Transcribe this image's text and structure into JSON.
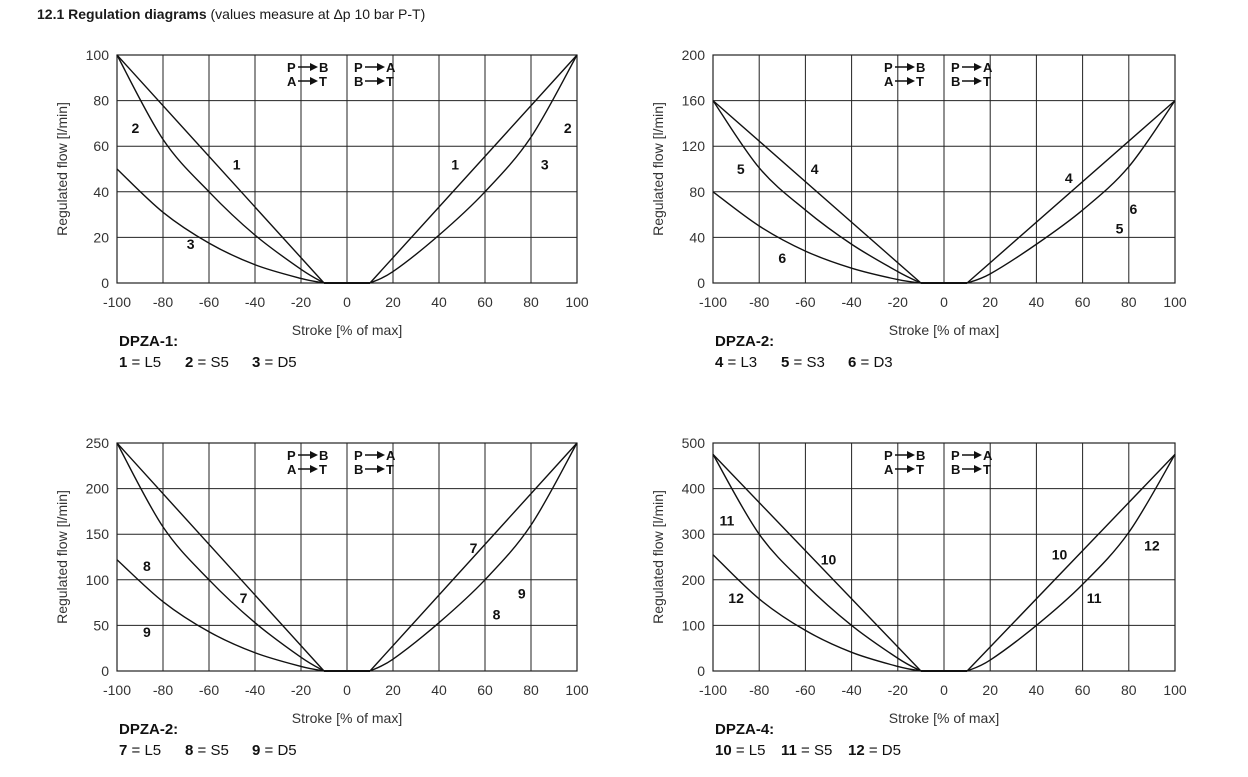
{
  "heading": {
    "number_title": "12.1 Regulation diagrams",
    "note": "(values measure at Δp 10 bar P-T)"
  },
  "flow_directions": {
    "left_top": "P",
    "left_top_to": "B",
    "left_bottom": "A",
    "left_bottom_to": "T",
    "right_top": "P",
    "right_top_to": "A",
    "right_bottom": "B",
    "right_bottom_to": "T"
  },
  "chart_data": [
    {
      "type": "line",
      "xlabel": "Stroke [% of max]",
      "ylabel": "Regulated flow [l/min]",
      "xlim": [
        -100,
        100
      ],
      "ylim": [
        0,
        100
      ],
      "xticks": [
        -100,
        -80,
        -60,
        -40,
        -20,
        0,
        20,
        40,
        60,
        80,
        100
      ],
      "yticks": [
        0,
        20,
        40,
        60,
        80,
        100
      ],
      "grid": true,
      "legend_title": "DPZA-1:",
      "legend": [
        {
          "num": "1",
          "code": "L5"
        },
        {
          "num": "2",
          "code": "S5"
        },
        {
          "num": "3",
          "code": "D5"
        }
      ],
      "series": [
        {
          "x": [
            -100,
            -10
          ],
          "y": [
            100,
            0
          ]
        },
        {
          "x": [
            -100,
            -80,
            -60,
            -40,
            -20,
            -10
          ],
          "y": [
            100,
            63,
            40,
            21,
            6,
            0
          ]
        },
        {
          "x": [
            -100,
            -80,
            -60,
            -40,
            -20,
            -10
          ],
          "y": [
            50,
            31,
            17.5,
            8,
            2,
            0
          ]
        },
        {
          "x": [
            10,
            100
          ],
          "y": [
            0,
            100
          ]
        },
        {
          "x": [
            10,
            20,
            40,
            60,
            80,
            100
          ],
          "y": [
            0,
            5,
            21,
            40,
            64,
            100
          ]
        }
      ],
      "annotations": [
        {
          "text": "2",
          "x": -92,
          "y": 68
        },
        {
          "text": "1",
          "x": -48,
          "y": 52
        },
        {
          "text": "3",
          "x": -68,
          "y": 17
        },
        {
          "text": "1",
          "x": 47,
          "y": 52
        },
        {
          "text": "3",
          "x": 86,
          "y": 52
        },
        {
          "text": "2",
          "x": 96,
          "y": 68
        }
      ]
    },
    {
      "type": "line",
      "xlabel": "Stroke [% of max]",
      "ylabel": "Regulated flow [l/min]",
      "xlim": [
        -100,
        100
      ],
      "ylim": [
        0,
        200
      ],
      "xticks": [
        -100,
        -80,
        -60,
        -40,
        -20,
        0,
        20,
        40,
        60,
        80,
        100
      ],
      "yticks": [
        0,
        40,
        80,
        120,
        160,
        200
      ],
      "grid": true,
      "legend_title": "DPZA-2:",
      "legend": [
        {
          "num": "4",
          "code": "L3"
        },
        {
          "num": "5",
          "code": "S3"
        },
        {
          "num": "6",
          "code": "D3"
        }
      ],
      "series": [
        {
          "x": [
            -100,
            -10
          ],
          "y": [
            160,
            0
          ]
        },
        {
          "x": [
            -100,
            -80,
            -60,
            -40,
            -20,
            -10
          ],
          "y": [
            160,
            101,
            64,
            34,
            10,
            0
          ]
        },
        {
          "x": [
            -100,
            -80,
            -60,
            -40,
            -20,
            -10
          ],
          "y": [
            80,
            50,
            28,
            13,
            3,
            0
          ]
        },
        {
          "x": [
            10,
            100
          ],
          "y": [
            0,
            160
          ]
        },
        {
          "x": [
            10,
            20,
            40,
            60,
            80,
            100
          ],
          "y": [
            0,
            8,
            34,
            64,
            102,
            160
          ]
        }
      ],
      "annotations": [
        {
          "text": "5",
          "x": -88,
          "y": 100
        },
        {
          "text": "4",
          "x": -56,
          "y": 100
        },
        {
          "text": "6",
          "x": -70,
          "y": 22
        },
        {
          "text": "4",
          "x": 54,
          "y": 92
        },
        {
          "text": "6",
          "x": 82,
          "y": 65
        },
        {
          "text": "5",
          "x": 76,
          "y": 48
        }
      ]
    },
    {
      "type": "line",
      "xlabel": "Stroke [% of max]",
      "ylabel": "Regulated flow [l/min]",
      "xlim": [
        -100,
        100
      ],
      "ylim": [
        0,
        250
      ],
      "xticks": [
        -100,
        -80,
        -60,
        -40,
        -20,
        0,
        20,
        40,
        60,
        80,
        100
      ],
      "yticks": [
        0,
        50,
        100,
        150,
        200,
        250
      ],
      "grid": true,
      "legend_title": "DPZA-2:",
      "legend": [
        {
          "num": "7",
          "code": "L5"
        },
        {
          "num": "8",
          "code": "S5"
        },
        {
          "num": "9",
          "code": "D5"
        }
      ],
      "series": [
        {
          "x": [
            -100,
            -10
          ],
          "y": [
            250,
            0
          ]
        },
        {
          "x": [
            -100,
            -80,
            -60,
            -40,
            -20,
            -10
          ],
          "y": [
            250,
            158,
            100,
            53,
            15,
            0
          ]
        },
        {
          "x": [
            -100,
            -80,
            -60,
            -40,
            -20,
            -10
          ],
          "y": [
            122,
            76,
            43,
            20,
            5,
            0
          ]
        },
        {
          "x": [
            10,
            100
          ],
          "y": [
            0,
            250
          ]
        },
        {
          "x": [
            10,
            20,
            40,
            60,
            80,
            100
          ],
          "y": [
            0,
            13,
            53,
            100,
            160,
            250
          ]
        }
      ],
      "annotations": [
        {
          "text": "8",
          "x": -87,
          "y": 115
        },
        {
          "text": "7",
          "x": -45,
          "y": 80
        },
        {
          "text": "9",
          "x": -87,
          "y": 43
        },
        {
          "text": "7",
          "x": 55,
          "y": 135
        },
        {
          "text": "9",
          "x": 76,
          "y": 85
        },
        {
          "text": "8",
          "x": 65,
          "y": 62
        }
      ]
    },
    {
      "type": "line",
      "xlabel": "Stroke [% of max]",
      "ylabel": "Regulated flow [l/min]",
      "xlim": [
        -100,
        100
      ],
      "ylim": [
        0,
        500
      ],
      "xticks": [
        -100,
        -80,
        -60,
        -40,
        -20,
        0,
        20,
        40,
        60,
        80,
        100
      ],
      "yticks": [
        0,
        100,
        200,
        300,
        400,
        500
      ],
      "grid": true,
      "legend_title": "DPZA-4:",
      "legend": [
        {
          "num": "10",
          "code": "L5"
        },
        {
          "num": "11",
          "code": "S5"
        },
        {
          "num": "12",
          "code": "D5"
        }
      ],
      "series": [
        {
          "x": [
            -100,
            -10
          ],
          "y": [
            475,
            0
          ]
        },
        {
          "x": [
            -100,
            -80,
            -60,
            -40,
            -20,
            -10
          ],
          "y": [
            475,
            300,
            190,
            100,
            28,
            0
          ]
        },
        {
          "x": [
            -100,
            -80,
            -60,
            -40,
            -20,
            -10
          ],
          "y": [
            255,
            158,
            89,
            41,
            10,
            0
          ]
        },
        {
          "x": [
            10,
            100
          ],
          "y": [
            0,
            475
          ]
        },
        {
          "x": [
            10,
            20,
            40,
            60,
            80,
            100
          ],
          "y": [
            0,
            24,
            100,
            190,
            304,
            475
          ]
        }
      ],
      "annotations": [
        {
          "text": "11",
          "x": -94,
          "y": 330
        },
        {
          "text": "10",
          "x": -50,
          "y": 245
        },
        {
          "text": "12",
          "x": -90,
          "y": 160
        },
        {
          "text": "10",
          "x": 50,
          "y": 255
        },
        {
          "text": "12",
          "x": 90,
          "y": 275
        },
        {
          "text": "11",
          "x": 65,
          "y": 160
        }
      ]
    }
  ]
}
